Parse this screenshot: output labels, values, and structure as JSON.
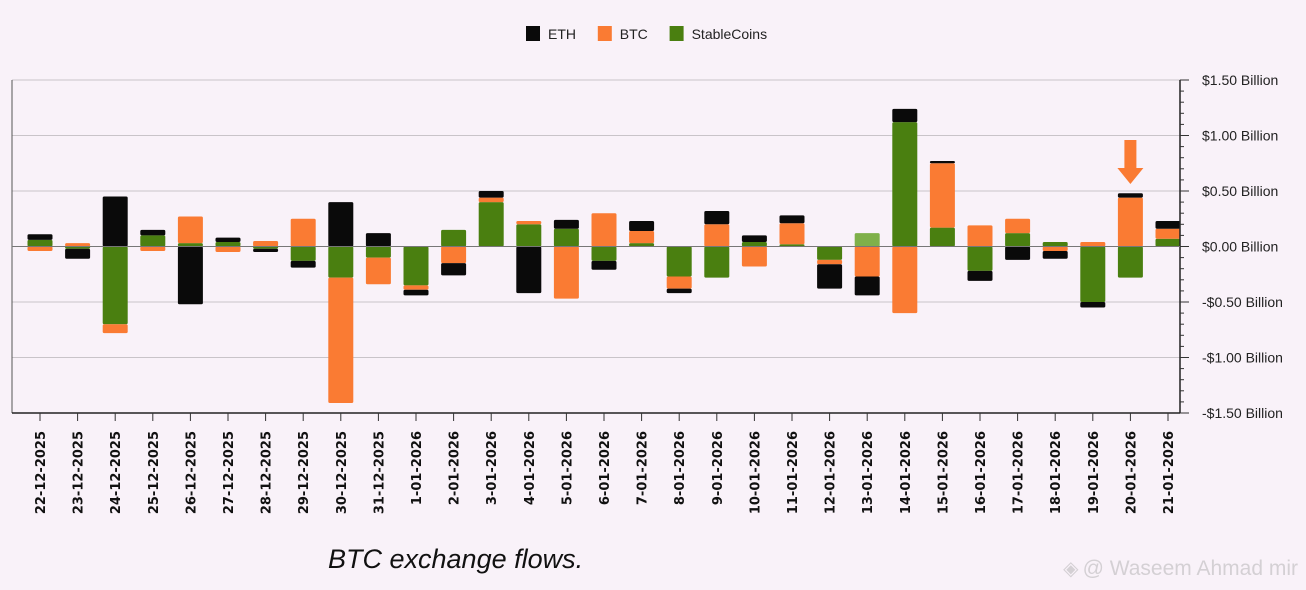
{
  "caption": "BTC exchange flows.",
  "watermark": "@ Waseem Ahmad mir",
  "chart_data": {
    "type": "bar",
    "stacked": true,
    "title": "",
    "xlabel": "",
    "ylabel": "",
    "legend_position": "top-center",
    "grid": true,
    "ylim": [
      -1.5,
      1.5
    ],
    "y_ticks": [
      {
        "value": 1.5,
        "label": "$1.50 Billion"
      },
      {
        "value": 1.0,
        "label": "$1.00 Billion"
      },
      {
        "value": 0.5,
        "label": "$0.50 Billion"
      },
      {
        "value": 0.0,
        "label": "$0.00 Billion"
      },
      {
        "value": -0.5,
        "label": "-$0.50 Billion"
      },
      {
        "value": -1.0,
        "label": "-$1.00 Billion"
      },
      {
        "value": -1.5,
        "label": "-$1.50 Billion"
      }
    ],
    "categories": [
      "22-12-2025",
      "23-12-2025",
      "24-12-2025",
      "25-12-2025",
      "26-12-2025",
      "27-12-2025",
      "28-12-2025",
      "29-12-2025",
      "30-12-2025",
      "31-12-2025",
      "1-01-2026",
      "2-01-2026",
      "3-01-2026",
      "4-01-2026",
      "5-01-2026",
      "6-01-2026",
      "7-01-2026",
      "8-01-2026",
      "9-01-2026",
      "10-01-2026",
      "11-01-2026",
      "12-01-2026",
      "13-01-2026",
      "14-01-2026",
      "15-01-2026",
      "16-01-2026",
      "17-01-2026",
      "18-01-2026",
      "19-01-2026",
      "20-01-2026",
      "21-01-2026"
    ],
    "series": [
      {
        "name": "StableCoins",
        "color": "#4a7f10",
        "values": [
          0.06,
          -0.02,
          -0.7,
          0.1,
          0.03,
          0.04,
          -0.02,
          -0.13,
          -0.28,
          -0.1,
          -0.35,
          0.15,
          0.4,
          0.2,
          0.16,
          -0.13,
          0.03,
          -0.27,
          -0.28,
          0.04,
          0.02,
          -0.12,
          0.12,
          1.12,
          0.17,
          -0.22,
          0.12,
          0.04,
          -0.5,
          -0.28,
          0.07
        ],
        "highlight": {
          "13-01-2026": "#7fb04a"
        }
      },
      {
        "name": "BTC",
        "color": "#fa7b33",
        "values": [
          -0.04,
          0.03,
          -0.08,
          -0.04,
          0.24,
          -0.05,
          0.05,
          0.25,
          -1.13,
          -0.24,
          -0.04,
          -0.15,
          0.04,
          0.03,
          -0.47,
          0.3,
          0.11,
          -0.11,
          0.2,
          -0.18,
          0.19,
          -0.04,
          -0.27,
          -0.6,
          0.58,
          0.19,
          0.13,
          -0.04,
          0.04,
          0.44,
          0.09
        ]
      },
      {
        "name": "ETH",
        "color": "#0a0a0a",
        "values": [
          0.05,
          -0.09,
          0.45,
          0.05,
          -0.52,
          0.04,
          -0.03,
          -0.06,
          0.4,
          0.12,
          -0.05,
          -0.11,
          0.06,
          -0.42,
          0.08,
          -0.08,
          0.09,
          -0.04,
          0.12,
          0.06,
          0.07,
          -0.22,
          -0.17,
          0.12,
          0.02,
          -0.09,
          -0.12,
          -0.07,
          -0.05,
          0.04,
          0.07
        ]
      }
    ],
    "legend": [
      {
        "name": "ETH",
        "color": "#0a0a0a"
      },
      {
        "name": "BTC",
        "color": "#fa7b33"
      },
      {
        "name": "StableCoins",
        "color": "#4a7f10"
      }
    ],
    "annotations": [
      {
        "type": "arrow",
        "category": "20-01-2026",
        "color": "#fa7b33"
      }
    ]
  }
}
